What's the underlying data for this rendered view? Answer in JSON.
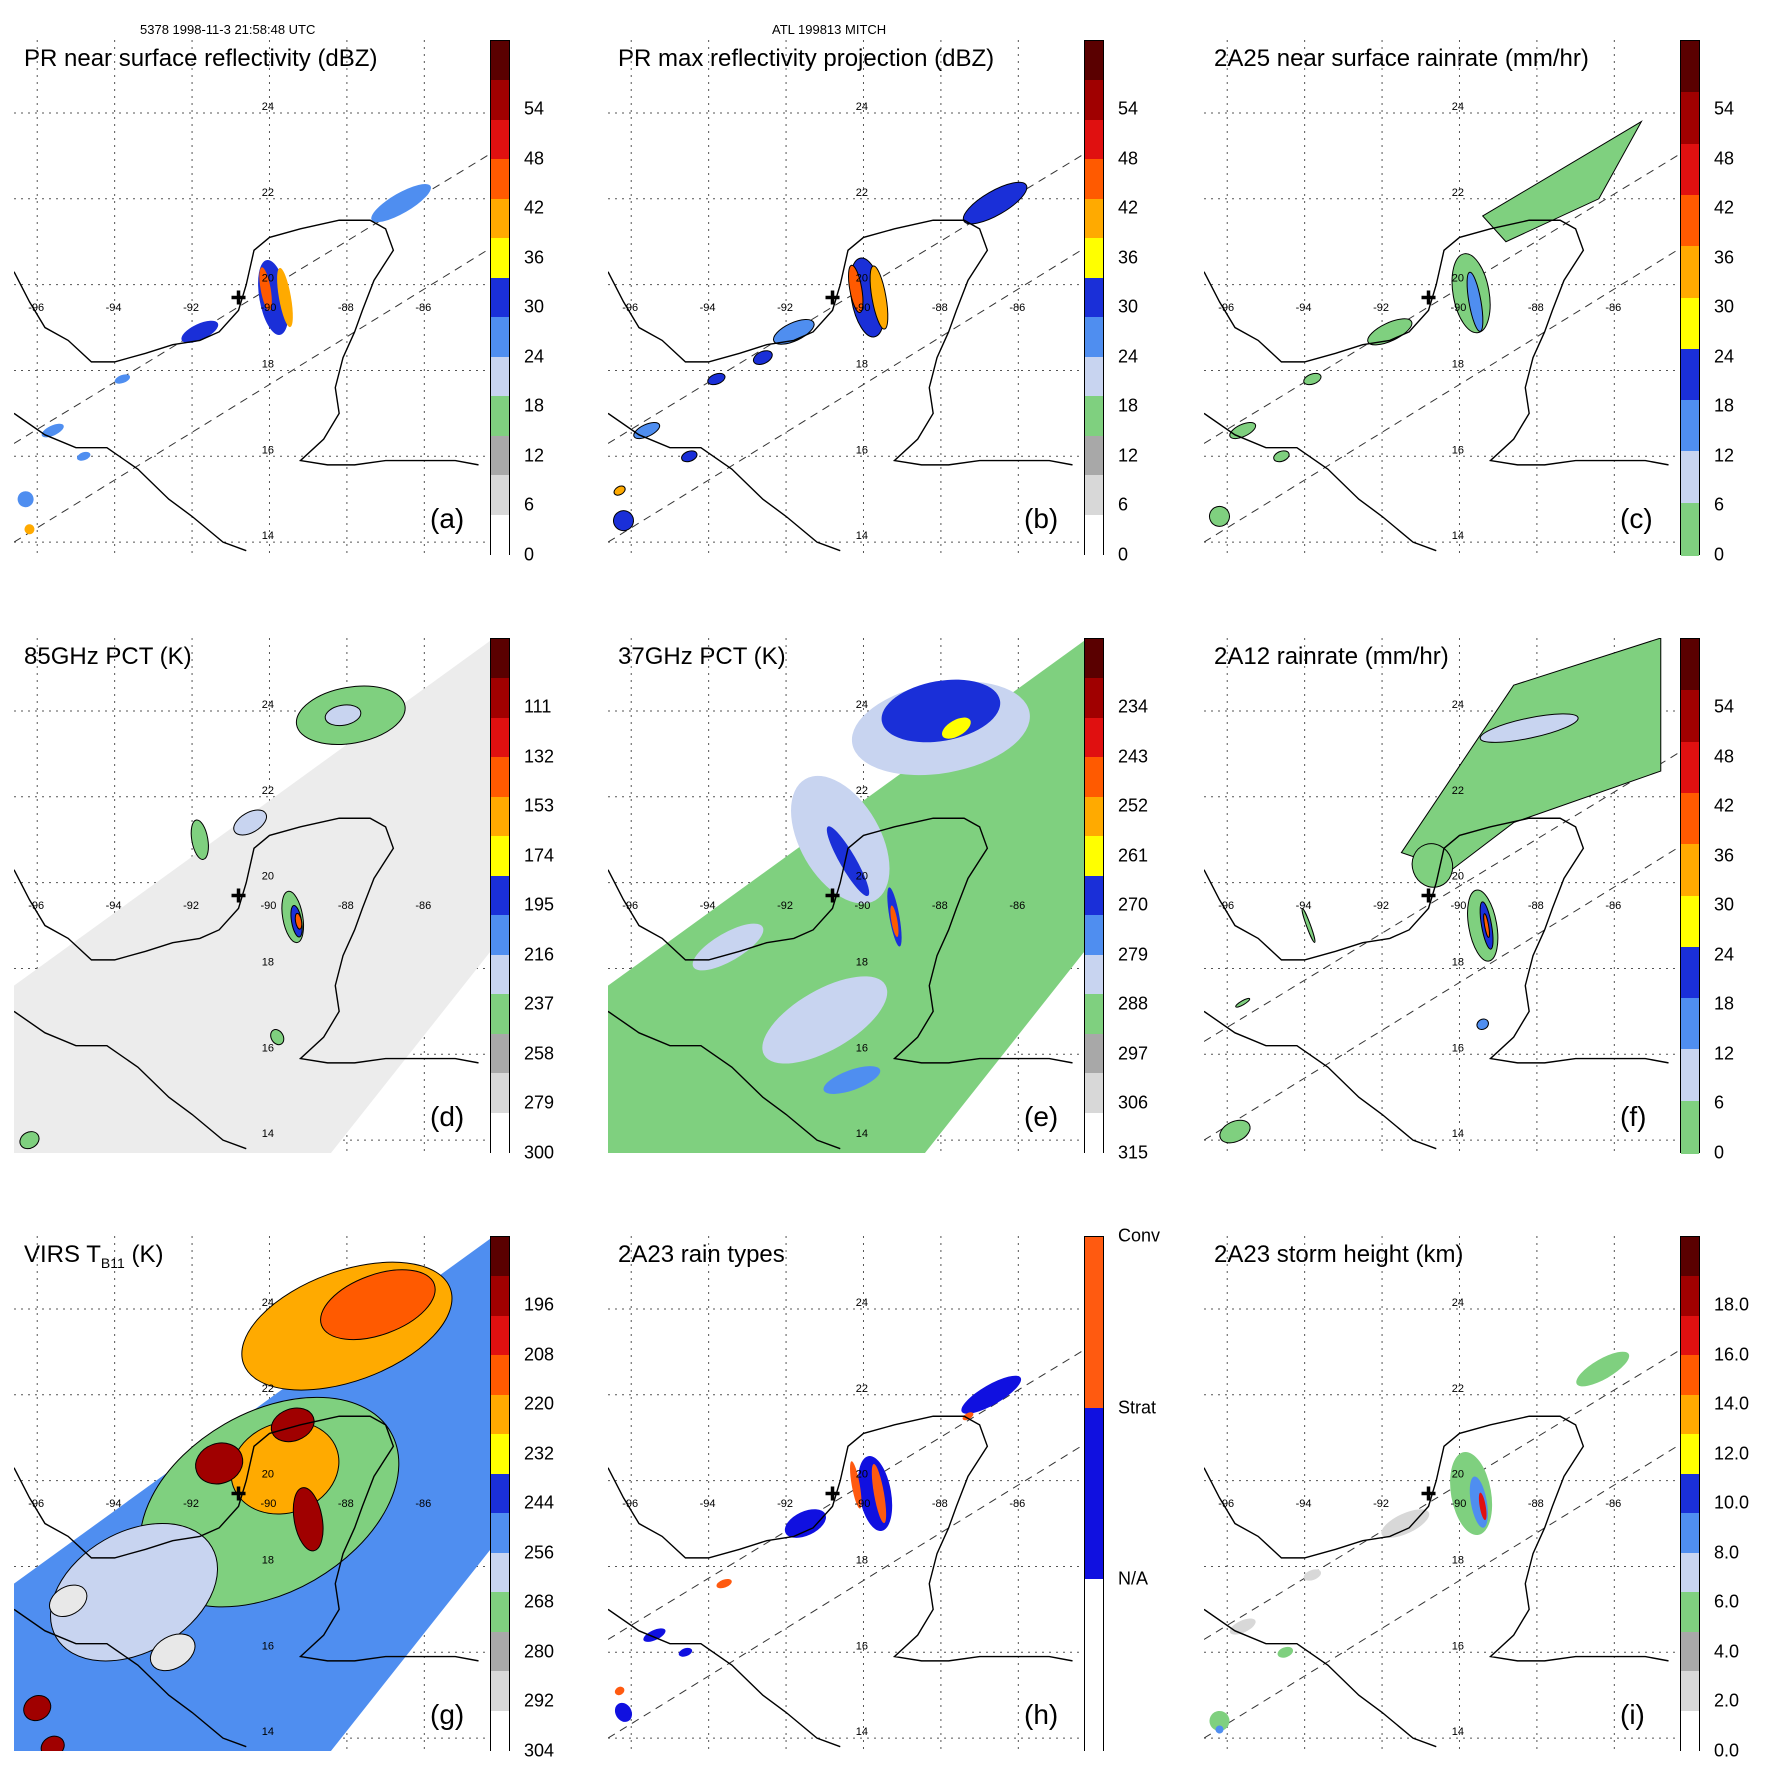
{
  "header": {
    "orbit_info": "5378 1998-11-3 21:58:48 UTC",
    "storm_info": "ATL 199813 MITCH"
  },
  "map": {
    "lon_labels": [
      "-96",
      "-94",
      "-92",
      "-90",
      "-88",
      "-86"
    ],
    "lat_labels": [
      "24",
      "22",
      "20",
      "18",
      "16",
      "14"
    ]
  },
  "panels": [
    {
      "title": "PR near surface reflectivity (dBZ)",
      "label": "(a)",
      "ticks": [
        "54",
        "48",
        "42",
        "36",
        "30",
        "24",
        "18",
        "12",
        "6",
        "0"
      ]
    },
    {
      "title": "PR max reflectivity projection (dBZ)",
      "label": "(b)",
      "ticks": [
        "54",
        "48",
        "42",
        "36",
        "30",
        "24",
        "18",
        "12",
        "6",
        "0"
      ]
    },
    {
      "title": "2A25 near surface rainrate (mm/hr)",
      "label": "(c)",
      "ticks": [
        "54",
        "48",
        "42",
        "36",
        "30",
        "24",
        "18",
        "12",
        "6",
        "0"
      ]
    },
    {
      "title": "85GHz PCT (K)",
      "label": "(d)",
      "ticks": [
        "111",
        "132",
        "153",
        "174",
        "195",
        "216",
        "237",
        "258",
        "279",
        "300"
      ]
    },
    {
      "title": "37GHz PCT (K)",
      "label": "(e)",
      "ticks": [
        "234",
        "243",
        "252",
        "261",
        "270",
        "279",
        "288",
        "297",
        "306",
        "315"
      ]
    },
    {
      "title": "2A12 rainrate (mm/hr)",
      "label": "(f)",
      "ticks": [
        "54",
        "48",
        "42",
        "36",
        "30",
        "24",
        "18",
        "12",
        "6",
        "0"
      ]
    },
    {
      "title_main": "VIRS T",
      "title_sub": "B11",
      "title_unit": " (K)",
      "label": "(g)",
      "ticks": [
        "196",
        "208",
        "220",
        "232",
        "244",
        "256",
        "268",
        "280",
        "292",
        "304"
      ]
    },
    {
      "title": "2A23 rain types",
      "label": "(h)",
      "ticks": [
        "Conv",
        "Strat",
        "N/A"
      ]
    },
    {
      "title": "2A23 storm height (km)",
      "label": "(i)",
      "ticks": [
        "18.0",
        "16.0",
        "14.0",
        "12.0",
        "10.0",
        "8.0",
        "6.0",
        "4.0",
        "2.0",
        "0.0"
      ]
    }
  ],
  "colors": {
    "cbar_default": [
      "#ffffff",
      "#d8d8d8",
      "#a8a8a8",
      "#7fd07f",
      "#c8d4f0",
      "#4f8ef0",
      "#1a2fd8",
      "#ffff00",
      "#ffaa00",
      "#ff5a00",
      "#e01010",
      "#a00000",
      "#5a0000"
    ],
    "cbar_rain": [
      "#7fd07f",
      "#c8d4f0",
      "#4f8ef0",
      "#1a2fd8",
      "#ffff00",
      "#ffaa00",
      "#ff5a00",
      "#e01010",
      "#a00000",
      "#5a0000"
    ],
    "cbar_types": [
      "#ffffff",
      "#1010e0",
      "#ff5a10"
    ],
    "coast": "#000000"
  }
}
